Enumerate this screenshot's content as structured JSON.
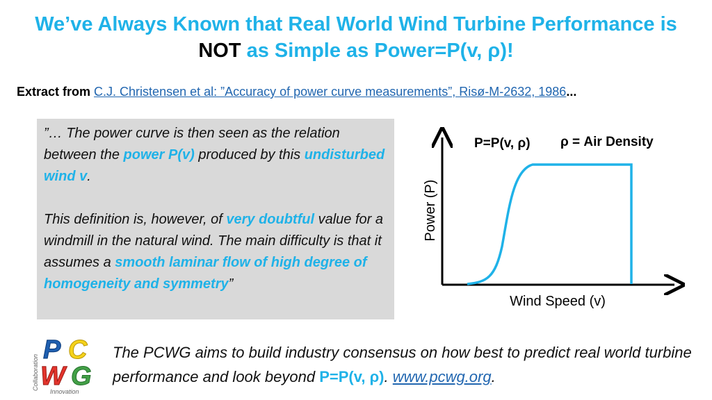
{
  "title": {
    "line1": "We’ve Always Known that Real World Wind Turbine Performance is",
    "not": "NOT",
    "line2_rest": "as Simple as Power=P(v, ρ)!"
  },
  "extract": {
    "label": "Extract from",
    "citation": "C.J. Christensen et al: ”Accuracy of power curve measurements”, Risø-M-2632, 1986",
    "ellipsis": "..."
  },
  "quote": {
    "p1_a": "”… The power curve is then seen as the relation between the",
    "p1_hl1": "power P(v)",
    "p1_b": "produced by this",
    "p1_hl2": "undisturbed wind v",
    "p1_c": ".",
    "p2_a": "This definition is, however, of",
    "p2_hl1": "very doubtful",
    "p2_b": "value for a windmill in the natural wind. The main difficulty is that it assumes a",
    "p2_hl2": "smooth laminar flow of high degree of homogeneity and symmetry",
    "p2_c": "”"
  },
  "chart": {
    "formula_label": "P=P(v, ρ)",
    "density_label": "ρ = Air Density",
    "ylabel": "Power (P)",
    "xlabel": "Wind Speed (v)",
    "curve_color": "#1fb2e8"
  },
  "logo": {
    "text": "PCWG",
    "side_text": "Collaboration",
    "bottom_text": "Innovation"
  },
  "bottom": {
    "text_a": "The PCWG aims to build industry consensus on how best to predict real world turbine performance and look beyond",
    "formula": "P=P(v, ρ)",
    "dot": ".",
    "link": "www.pcwg.org",
    "end": "."
  },
  "colors": {
    "accent": "#1fb2e8",
    "link": "#2166b0",
    "panel": "#d9d9d9"
  }
}
